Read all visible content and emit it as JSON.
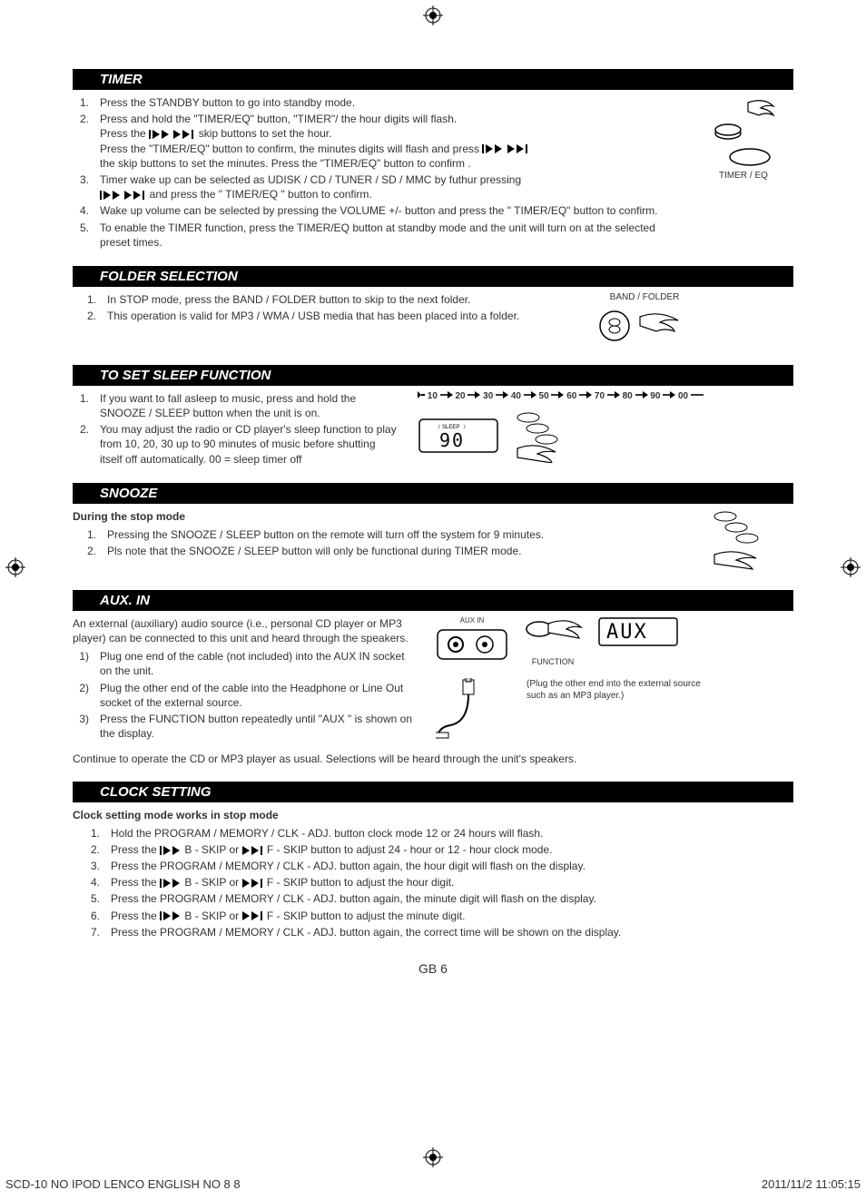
{
  "colors": {
    "text": "#333333",
    "header_bg": "#000000",
    "header_fg": "#ffffff",
    "page_bg": "#ffffff"
  },
  "typography": {
    "base_size_pt": 9,
    "header_size_pt": 11,
    "font_family": "Arial"
  },
  "registration_marks": {
    "top_center": true,
    "left_mid": true,
    "right_mid": true,
    "bottom_center": true
  },
  "timer": {
    "heading": "TIMER",
    "side_label": "TIMER / EQ",
    "items": [
      {
        "num": "1.",
        "text": "Press the STANDBY button to go into standby mode."
      },
      {
        "num": "2.",
        "lines": [
          "Press and hold the \"TIMER/EQ\" button, \"TIMER\"/ the hour digits will flash.",
          {
            "before": "Press the ",
            "icons": "both",
            "after": "  skip buttons to set the hour."
          },
          {
            "before": "Press the \"TIMER/EQ\" button to confirm, the minutes digits will flash and press ",
            "icons": "both",
            "after": ""
          },
          "the skip buttons to set the minutes. Press the \"TIMER/EQ\" button to confirm ."
        ]
      },
      {
        "num": "3.",
        "lines": [
          "Timer wake up can be selected as UDISK / CD / TUNER / SD / MMC by futhur pressing",
          {
            "before": " ",
            "icons": "both",
            "after": "  and press the \" TIMER/EQ \" button to confirm."
          }
        ]
      },
      {
        "num": "4.",
        "text": "Wake up volume can be selected by pressing the VOLUME +/- button and press the \" TIMER/EQ\" button to confirm."
      },
      {
        "num": "5.",
        "text": "To enable the TIMER function, press the TIMER/EQ button at standby mode and the unit will turn on at the selected preset times."
      }
    ]
  },
  "folder": {
    "heading": "FOLDER SELECTION",
    "side_label": "BAND / FOLDER",
    "items": [
      {
        "num": "1.",
        "text": "In STOP mode, press the BAND / FOLDER button to skip to the next folder."
      },
      {
        "num": "2.",
        "text": "This operation is valid for MP3 / WMA / USB media that has been placed into a folder."
      }
    ]
  },
  "sleep": {
    "heading": "TO SET SLEEP FUNCTION",
    "bar_values": [
      "10",
      "20",
      "30",
      "40",
      "50",
      "60",
      "70",
      "80",
      "90",
      "00"
    ],
    "display_label": "SLEEP",
    "display_value": "90",
    "items": [
      {
        "num": "1.",
        "text": "If you want to fall asleep to music, press and hold the SNOOZE / SLEEP button when the unit is on."
      },
      {
        "num": "2.",
        "text": "You may adjust the radio or CD player's sleep function to play from 10, 20, 30 up to 90 minutes of music before shutting itself off automatically. 00 = sleep timer off"
      }
    ]
  },
  "snooze": {
    "heading": "SNOOZE",
    "intro": "During the stop mode",
    "items": [
      {
        "num": "1.",
        "text": "Pressing the SNOOZE / SLEEP button on the remote will turn off the system for 9 minutes."
      },
      {
        "num": "2.",
        "text": "Pls note that the SNOOZE / SLEEP button will only be functional during TIMER mode."
      }
    ]
  },
  "aux": {
    "heading": "AUX. IN",
    "intro": "An external (auxiliary) audio source (i.e., personal CD player or MP3 player) can be connected to this unit and heard through the speakers.",
    "labels": {
      "socket": "AUX IN",
      "function": "FUNCTION",
      "display": "AUX"
    },
    "caption": "(Plug the other end into the external source such as an MP3 player.)",
    "items": [
      {
        "num": "1)",
        "text": "Plug one end of the cable (not included) into the AUX IN socket on the unit."
      },
      {
        "num": "2)",
        "text": "Plug the other end of the cable into the Headphone or Line Out socket of the external source."
      },
      {
        "num": "3)",
        "text": "Press the FUNCTION button repeatedly until \"AUX \" is shown on the display."
      }
    ],
    "continue": "Continue to operate the CD or MP3 player as usual.  Selections will be heard through the unit's speakers."
  },
  "clock": {
    "heading": "CLOCK  SETTING",
    "intro": "Clock setting mode works in stop mode",
    "items": [
      {
        "num": "1.",
        "text": "Hold the PROGRAM / MEMORY / CLK - ADJ. button clock mode 12 or 24 hours will flash."
      },
      {
        "num": "2.",
        "segments": [
          {
            "t": "Press the "
          },
          {
            "icon": "prev"
          },
          {
            "t": " B - SKIP  or "
          },
          {
            "icon": "next"
          },
          {
            "t": "  F - SKIP button to adjust 24 - hour or 12 - hour clock mode."
          }
        ]
      },
      {
        "num": "3.",
        "text": "Press the PROGRAM / MEMORY / CLK - ADJ. button again, the hour digit will flash on the display."
      },
      {
        "num": "4.",
        "segments": [
          {
            "t": "Press the "
          },
          {
            "icon": "prev"
          },
          {
            "t": " B - SKIP or  "
          },
          {
            "icon": "next"
          },
          {
            "t": "  F - SKIP button to adjust the hour digit."
          }
        ]
      },
      {
        "num": "5.",
        "text": "Press the PROGRAM / MEMORY / CLK - ADJ. button again, the minute digit will flash on the display."
      },
      {
        "num": "6.",
        "segments": [
          {
            "t": "Press the "
          },
          {
            "icon": "prev"
          },
          {
            "t": "  B - SKIP or "
          },
          {
            "icon": "next"
          },
          {
            "t": "  F - SKIP button to adjust the minute digit."
          }
        ]
      },
      {
        "num": "7.",
        "text": "Press the PROGRAM / MEMORY / CLK - ADJ. button again, the correct time will be shown on the display."
      }
    ]
  },
  "page": "GB 6",
  "footer": {
    "left": "SCD-10 NO IPOD LENCO ENGLISH NO 8   8",
    "right": "2011/11/2     11:05:15"
  }
}
